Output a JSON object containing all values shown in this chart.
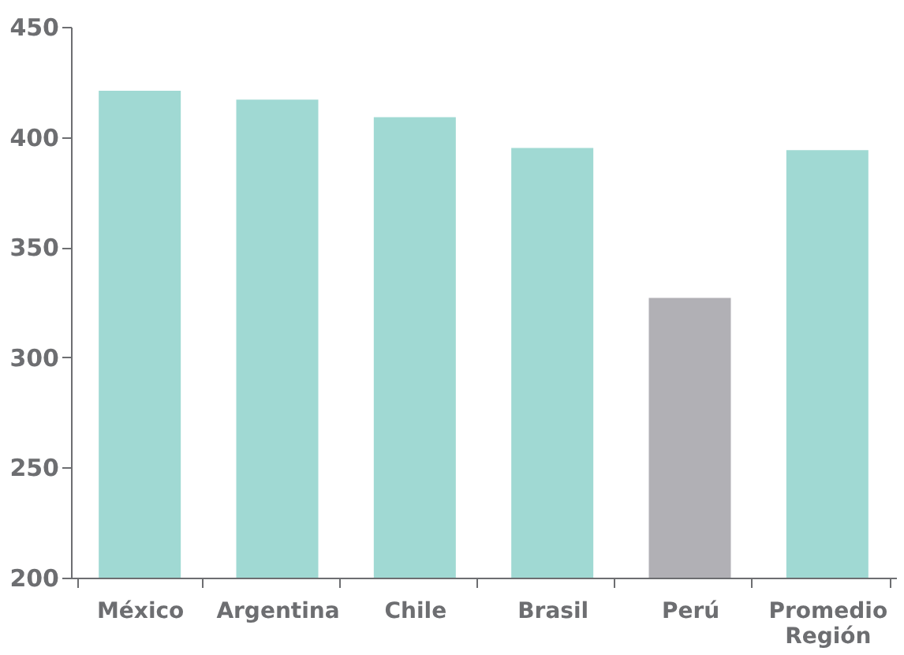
{
  "chart_data": {
    "type": "bar",
    "categories": [
      "México",
      "Argentina",
      "Chile",
      "Brasil",
      "Perú",
      "Promedio Región"
    ],
    "values": [
      421,
      417,
      409,
      395,
      327,
      394
    ],
    "colors": [
      "#a0d9d3",
      "#a0d9d3",
      "#a0d9d3",
      "#a0d9d3",
      "#b1b0b5",
      "#a0d9d3"
    ],
    "ylim": [
      200,
      450
    ],
    "yticks": [
      200,
      250,
      300,
      350,
      400,
      450
    ],
    "grid": false
  }
}
